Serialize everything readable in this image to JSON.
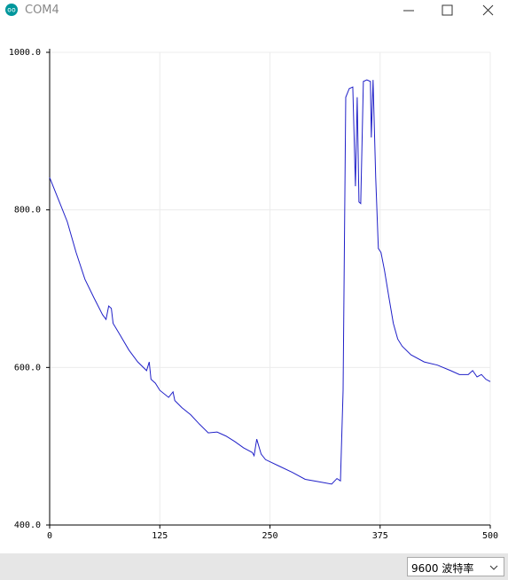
{
  "window": {
    "title": "COM4"
  },
  "footer": {
    "baud_rate": "9600  波特率"
  },
  "chart_data": {
    "type": "line",
    "color": "#2020c8",
    "grid": true,
    "xlim": [
      0,
      500
    ],
    "xticks": [
      0,
      125,
      250,
      375,
      500
    ],
    "ylim": [
      400,
      1000
    ],
    "yticks": [
      {
        "value": 400,
        "label": "400.0"
      },
      {
        "value": 600,
        "label": "600.0"
      },
      {
        "value": 800,
        "label": "800.0"
      },
      {
        "value": 1000,
        "label": "1000.0"
      }
    ],
    "x": [
      0,
      10,
      20,
      30,
      40,
      50,
      60,
      64,
      67,
      70,
      72,
      80,
      90,
      100,
      110,
      113,
      115,
      120,
      125,
      135,
      140,
      142,
      150,
      160,
      170,
      180,
      190,
      200,
      210,
      220,
      230,
      232,
      235,
      240,
      245,
      260,
      275,
      290,
      305,
      320,
      326,
      330,
      333,
      336,
      340,
      344,
      347,
      349,
      351,
      353,
      356,
      360,
      364,
      365,
      367,
      370,
      373,
      376,
      380,
      385,
      390,
      395,
      400,
      410,
      425,
      440,
      455,
      465,
      475,
      480,
      485,
      490,
      495,
      500
    ],
    "values": [
      841,
      813,
      785,
      746,
      712,
      689,
      667,
      661,
      678,
      675,
      656,
      641,
      622,
      607,
      596,
      607,
      585,
      580,
      571,
      562,
      569,
      558,
      549,
      540,
      528,
      517,
      518,
      513,
      506,
      498,
      492,
      488,
      509,
      490,
      483,
      475,
      467,
      458,
      455,
      452,
      459,
      456,
      571,
      943,
      954,
      956,
      830,
      943,
      810,
      808,
      963,
      965,
      963,
      892,
      965,
      841,
      751,
      746,
      723,
      689,
      656,
      636,
      627,
      616,
      607,
      603,
      596,
      591,
      591,
      596,
      588,
      591,
      585,
      582
    ]
  }
}
